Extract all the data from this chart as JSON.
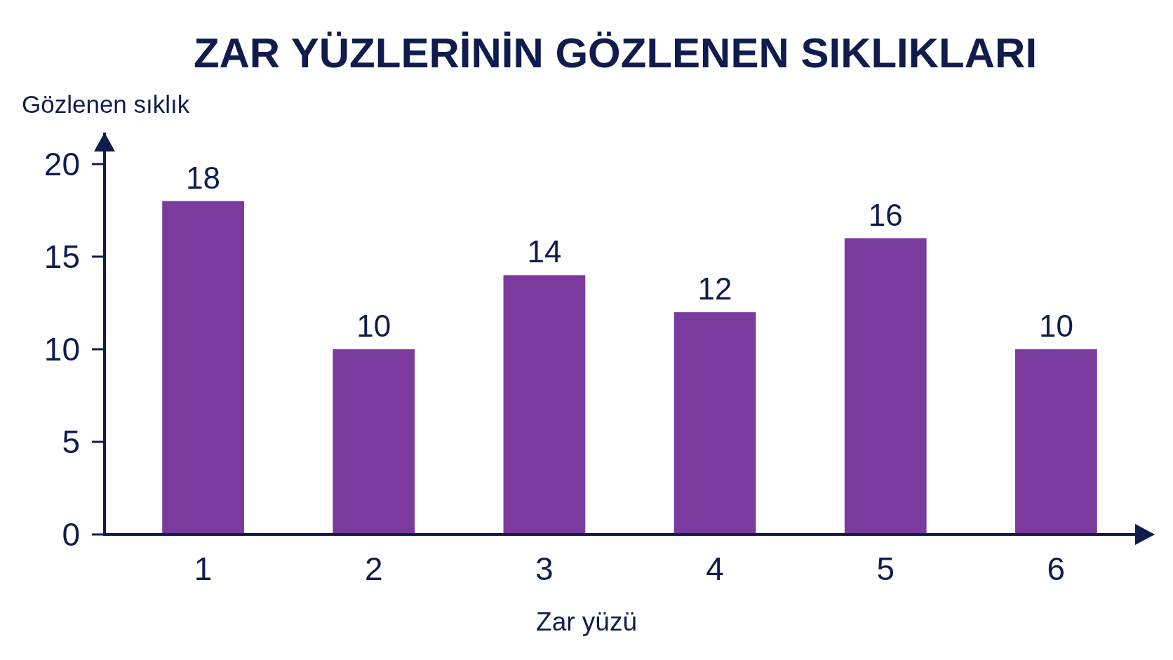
{
  "chart_data": {
    "type": "bar",
    "title": "ZAR YÜZLERİNİN GÖZLENEN SIKLIKLARI",
    "xlabel": "Zar yüzü",
    "ylabel": "Gözlenen sıklık",
    "categories": [
      "1",
      "2",
      "3",
      "4",
      "5",
      "6"
    ],
    "values": [
      18,
      10,
      14,
      12,
      16,
      10
    ],
    "color": "#7a3a9e",
    "ylim": [
      0,
      21.7
    ],
    "yticks": [
      0,
      5,
      10,
      15,
      20
    ],
    "data_labels": true
  }
}
